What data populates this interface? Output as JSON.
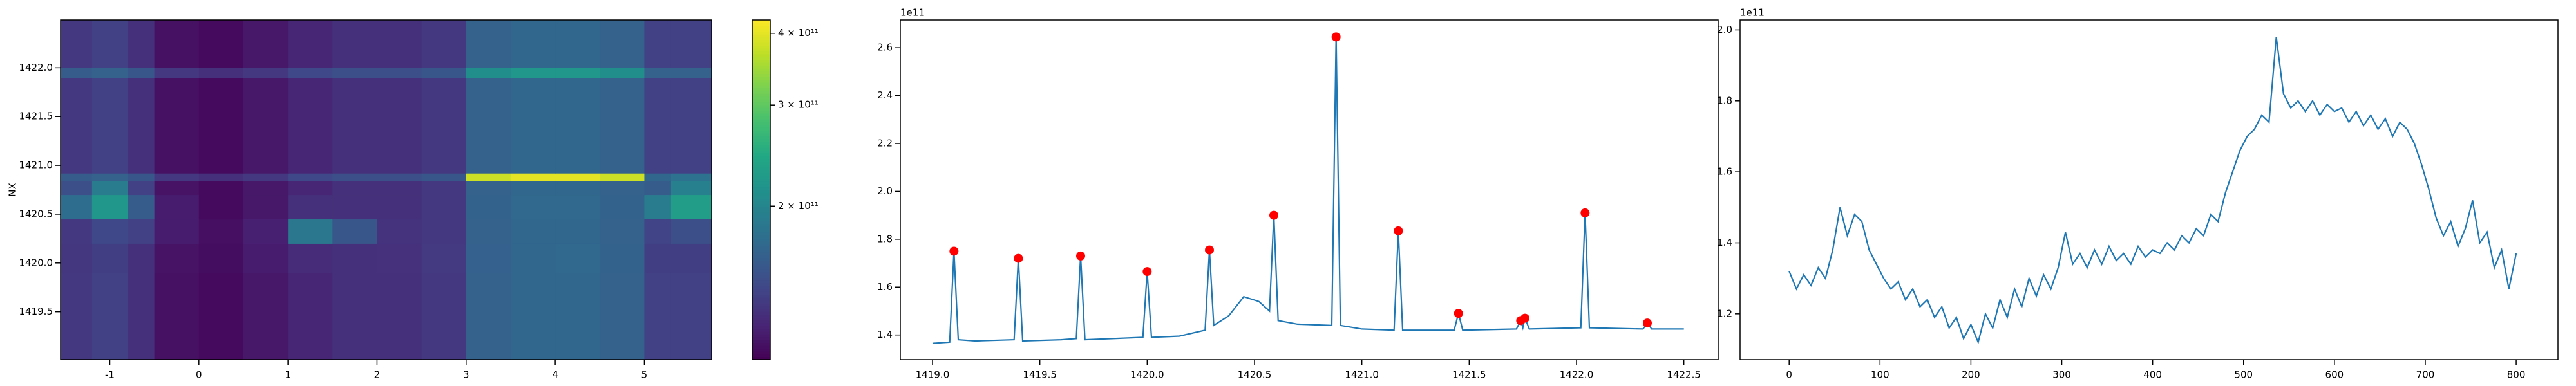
{
  "chart_data": [
    {
      "type": "heatmap",
      "ylabel": "NX",
      "xlim": [
        -1.553,
        5.756
      ],
      "ylim": [
        1419.01,
        1422.49
      ],
      "xticks": [
        -1,
        0,
        1,
        2,
        3,
        4,
        5
      ],
      "yticks": [
        {
          "value": 1419.5,
          "label": "1419.5"
        },
        {
          "value": 1420,
          "label": "1420.0"
        },
        {
          "value": 1420.5,
          "label": "1420.5"
        },
        {
          "value": 1421,
          "label": "1421.0"
        },
        {
          "value": 1421.5,
          "label": "1421.5"
        },
        {
          "value": 1422,
          "label": "1422.0"
        }
      ],
      "xedges": [
        -1.553,
        -1.2,
        -0.8,
        -0.5,
        0,
        0.5,
        1,
        1.5,
        2,
        2.5,
        3,
        3.5,
        4,
        4.5,
        5,
        5.3,
        5.756
      ],
      "yedges": [
        1419.01,
        1419.9,
        1420.2,
        1420.45,
        1420.7,
        1420.84,
        1420.92,
        1421.9,
        1422.0,
        1422.49
      ],
      "z": [
        [
          135000000000.0,
          140000000000.0,
          130000000000.0,
          115000000000.0,
          112000000000.0,
          118000000000.0,
          125000000000.0,
          130000000000.0,
          130000000000.0,
          135000000000.0,
          165000000000.0,
          170000000000.0,
          170000000000.0,
          165000000000.0,
          140000000000.0,
          140000000000.0
        ],
        [
          134000000000.0,
          138000000000.0,
          130000000000.0,
          116000000000.0,
          113000000000.0,
          120000000000.0,
          128000000000.0,
          130000000000.0,
          131000000000.0,
          136000000000.0,
          164000000000.0,
          170000000000.0,
          171000000000.0,
          166000000000.0,
          138000000000.0,
          138000000000.0
        ],
        [
          135000000000.0,
          145000000000.0,
          140000000000.0,
          120000000000.0,
          114000000000.0,
          122000000000.0,
          185000000000.0,
          155000000000.0,
          132000000000.0,
          135000000000.0,
          165000000000.0,
          170000000000.0,
          170000000000.0,
          165000000000.0,
          142000000000.0,
          150000000000.0
        ],
        [
          175000000000.0,
          220000000000.0,
          160000000000.0,
          120000000000.0,
          112000000000.0,
          118000000000.0,
          130000000000.0,
          130000000000.0,
          130000000000.0,
          135000000000.0,
          166000000000.0,
          172000000000.0,
          172000000000.0,
          166000000000.0,
          190000000000.0,
          230000000000.0
        ],
        [
          150000000000.0,
          190000000000.0,
          140000000000.0,
          116000000000.0,
          112000000000.0,
          118000000000.0,
          125000000000.0,
          130000000000.0,
          130000000000.0,
          135000000000.0,
          165000000000.0,
          170000000000.0,
          170000000000.0,
          165000000000.0,
          160000000000.0,
          195000000000.0
        ],
        [
          160000000000.0,
          165000000000.0,
          155000000000.0,
          135000000000.0,
          130000000000.0,
          135000000000.0,
          145000000000.0,
          150000000000.0,
          150000000000.0,
          155000000000.0,
          380000000000.0,
          400000000000.0,
          400000000000.0,
          380000000000.0,
          170000000000.0,
          180000000000.0
        ],
        [
          135000000000.0,
          140000000000.0,
          130000000000.0,
          115000000000.0,
          112000000000.0,
          118000000000.0,
          125000000000.0,
          130000000000.0,
          130000000000.0,
          135000000000.0,
          165000000000.0,
          170000000000.0,
          170000000000.0,
          165000000000.0,
          140000000000.0,
          140000000000.0
        ],
        [
          160000000000.0,
          165000000000.0,
          155000000000.0,
          135000000000.0,
          130000000000.0,
          135000000000.0,
          145000000000.0,
          150000000000.0,
          150000000000.0,
          155000000000.0,
          210000000000.0,
          220000000000.0,
          220000000000.0,
          210000000000.0,
          165000000000.0,
          165000000000.0
        ],
        [
          135000000000.0,
          140000000000.0,
          130000000000.0,
          115000000000.0,
          112000000000.0,
          118000000000.0,
          125000000000.0,
          130000000000.0,
          130000000000.0,
          135000000000.0,
          165000000000.0,
          170000000000.0,
          170000000000.0,
          165000000000.0,
          140000000000.0,
          140000000000.0
        ]
      ],
      "colorbar": {
        "colormap": "viridis",
        "scale": "log",
        "clim": [
          108000000000.0,
          422000000000.0
        ],
        "ticks": [
          {
            "value": 200000000000.0,
            "label": "2 × 10¹¹"
          },
          {
            "value": 300000000000.0,
            "label": "3 × 10¹¹"
          },
          {
            "value": 400000000000.0,
            "label": "4 × 10¹¹"
          }
        ]
      }
    },
    {
      "type": "line",
      "offset_text": "1e11",
      "color": "#1f77b4",
      "xlim": [
        1418.85,
        1422.66
      ],
      "ylim": [
        1.297,
        2.716
      ],
      "xticks": [
        {
          "value": 1419,
          "label": "1419.0"
        },
        {
          "value": 1419.5,
          "label": "1419.5"
        },
        {
          "value": 1420,
          "label": "1420.0"
        },
        {
          "value": 1420.5,
          "label": "1420.5"
        },
        {
          "value": 1421,
          "label": "1421.0"
        },
        {
          "value": 1421.5,
          "label": "1421.5"
        },
        {
          "value": 1422,
          "label": "1422.0"
        },
        {
          "value": 1422.5,
          "label": "1422.5"
        }
      ],
      "yticks": [
        1.4,
        1.6,
        1.8,
        {
          "value": 2,
          "label": "2.0"
        },
        2.2,
        2.4,
        2.6
      ],
      "x": [
        1419.0,
        1419.08,
        1419.1,
        1419.12,
        1419.2,
        1419.38,
        1419.4,
        1419.42,
        1419.6,
        1419.67,
        1419.69,
        1419.71,
        1419.98,
        1420.0,
        1420.02,
        1420.15,
        1420.27,
        1420.29,
        1420.31,
        1420.38,
        1420.45,
        1420.52,
        1420.57,
        1420.59,
        1420.61,
        1420.7,
        1420.86,
        1420.88,
        1420.9,
        1421.0,
        1421.15,
        1421.17,
        1421.19,
        1421.43,
        1421.45,
        1421.47,
        1421.72,
        1421.74,
        1421.75,
        1421.76,
        1421.78,
        1422.02,
        1422.04,
        1422.06,
        1422.31,
        1422.33,
        1422.35,
        1422.5
      ],
      "values": [
        1.365,
        1.37,
        1.75,
        1.38,
        1.375,
        1.38,
        1.72,
        1.375,
        1.38,
        1.385,
        1.73,
        1.38,
        1.39,
        1.665,
        1.39,
        1.395,
        1.42,
        1.755,
        1.44,
        1.48,
        1.56,
        1.54,
        1.5,
        1.9,
        1.46,
        1.445,
        1.44,
        2.645,
        1.44,
        1.425,
        1.42,
        1.835,
        1.42,
        1.42,
        1.49,
        1.42,
        1.425,
        1.46,
        1.43,
        1.47,
        1.425,
        1.43,
        1.91,
        1.43,
        1.425,
        1.45,
        1.425,
        1.425
      ],
      "peaks": {
        "color": "#ff0000",
        "x": [
          1419.1,
          1419.4,
          1419.69,
          1420.0,
          1420.29,
          1420.59,
          1420.88,
          1421.17,
          1421.45,
          1421.74,
          1421.76,
          1422.04,
          1422.33
        ],
        "values": [
          1.75,
          1.72,
          1.73,
          1.665,
          1.755,
          1.9,
          2.645,
          1.835,
          1.49,
          1.46,
          1.47,
          1.91,
          1.45
        ]
      }
    },
    {
      "type": "line",
      "offset_text": "1e11",
      "color": "#1f77b4",
      "xlim": [
        -54,
        846
      ],
      "ylim": [
        1.071,
        2.028
      ],
      "xticks": [
        0,
        100,
        200,
        300,
        400,
        500,
        600,
        700,
        800
      ],
      "yticks": [
        1.2,
        1.4,
        1.6,
        1.8,
        {
          "value": 2,
          "label": "2.0"
        }
      ],
      "x": [
        0,
        8,
        16,
        24,
        32,
        40,
        48,
        56,
        64,
        72,
        80,
        88,
        96,
        104,
        112,
        120,
        128,
        136,
        144,
        152,
        160,
        168,
        176,
        184,
        192,
        200,
        208,
        216,
        224,
        232,
        240,
        248,
        256,
        264,
        272,
        280,
        288,
        296,
        304,
        312,
        320,
        328,
        336,
        344,
        352,
        360,
        368,
        376,
        384,
        392,
        400,
        408,
        416,
        424,
        432,
        440,
        448,
        456,
        464,
        472,
        480,
        488,
        496,
        504,
        512,
        520,
        528,
        536,
        544,
        552,
        560,
        568,
        576,
        584,
        592,
        600,
        608,
        616,
        624,
        632,
        640,
        648,
        656,
        664,
        672,
        680,
        688,
        696,
        704,
        712,
        720,
        728,
        736,
        744,
        752,
        760,
        768,
        776,
        784,
        792,
        800
      ],
      "values": [
        1.32,
        1.27,
        1.31,
        1.28,
        1.33,
        1.3,
        1.38,
        1.5,
        1.42,
        1.48,
        1.46,
        1.38,
        1.34,
        1.3,
        1.27,
        1.29,
        1.24,
        1.27,
        1.22,
        1.24,
        1.19,
        1.22,
        1.16,
        1.19,
        1.13,
        1.17,
        1.12,
        1.2,
        1.16,
        1.24,
        1.19,
        1.27,
        1.22,
        1.3,
        1.25,
        1.31,
        1.27,
        1.33,
        1.43,
        1.34,
        1.37,
        1.33,
        1.38,
        1.34,
        1.39,
        1.35,
        1.37,
        1.34,
        1.39,
        1.36,
        1.38,
        1.37,
        1.4,
        1.38,
        1.42,
        1.4,
        1.44,
        1.42,
        1.48,
        1.46,
        1.54,
        1.6,
        1.66,
        1.7,
        1.72,
        1.76,
        1.74,
        1.98,
        1.82,
        1.78,
        1.8,
        1.77,
        1.8,
        1.76,
        1.79,
        1.77,
        1.78,
        1.74,
        1.77,
        1.73,
        1.76,
        1.72,
        1.75,
        1.7,
        1.74,
        1.72,
        1.68,
        1.62,
        1.55,
        1.47,
        1.42,
        1.46,
        1.39,
        1.44,
        1.52,
        1.4,
        1.43,
        1.33,
        1.38,
        1.27,
        1.37
      ]
    }
  ]
}
